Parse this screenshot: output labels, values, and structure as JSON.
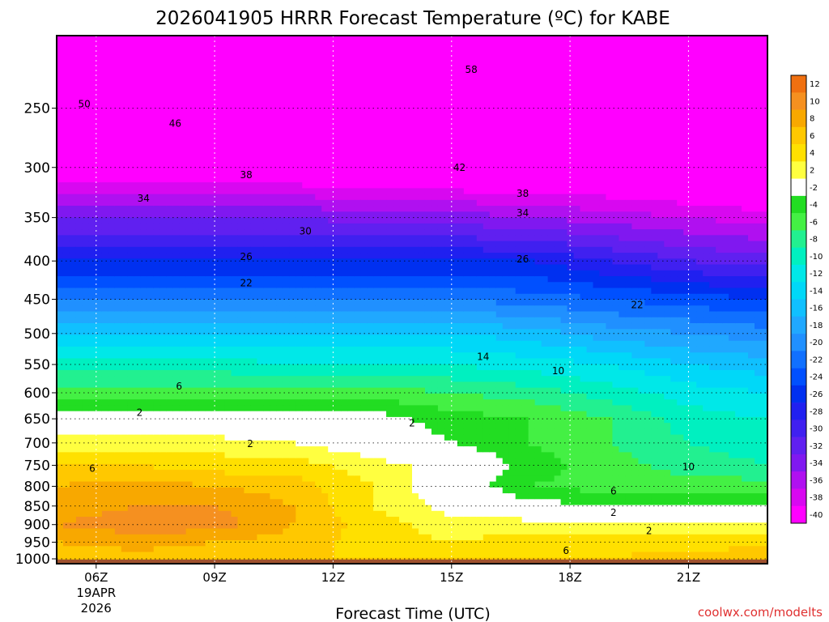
{
  "title": "2026041905 HRRR Forecast Temperature (ºC) for KABE",
  "xlabel": "Forecast Time (UTC)",
  "credit": "coolwx.com/modelts",
  "colors": {
    "ground": "#A0522D",
    "credit": "#e03030",
    "warm_line": "#000000",
    "freezing_line": "#e0207a",
    "cold_line": "#000000"
  },
  "chart_data": {
    "type": "heatmap",
    "title": "2026041905 HRRR Forecast Temperature (ºC) for KABE",
    "xlabel": "Forecast Time (UTC)",
    "ylabel": "",
    "y_scale": "log",
    "y_reversed": true,
    "x_ticks": [
      {
        "hour": 6,
        "label": "06Z",
        "date_line1": "19APR",
        "date_line2": "2026"
      },
      {
        "hour": 9,
        "label": "09Z"
      },
      {
        "hour": 12,
        "label": "12Z"
      },
      {
        "hour": 15,
        "label": "15Z"
      },
      {
        "hour": 18,
        "label": "18Z"
      },
      {
        "hour": 21,
        "label": "21Z"
      }
    ],
    "xlim": [
      5,
      23
    ],
    "ylim": [
      1015,
      200
    ],
    "y_ticks": [
      250,
      300,
      350,
      400,
      450,
      500,
      550,
      600,
      650,
      700,
      750,
      800,
      850,
      900,
      950,
      1000
    ],
    "colorbar": {
      "bins": [
        {
          "label": "12",
          "color": "#f07010"
        },
        {
          "label": "10",
          "color": "#f59020"
        },
        {
          "label": "8",
          "color": "#f8a800"
        },
        {
          "label": "6",
          "color": "#ffc800"
        },
        {
          "label": "4",
          "color": "#ffe000"
        },
        {
          "label": "2",
          "color": "#ffff40"
        },
        {
          "label": "-2",
          "color": "#ffffff"
        },
        {
          "label": "-4",
          "color": "#22dd22"
        },
        {
          "label": "-6",
          "color": "#44f044"
        },
        {
          "label": "-8",
          "color": "#22f090"
        },
        {
          "label": "-10",
          "color": "#00f0c0"
        },
        {
          "label": "-12",
          "color": "#00e8e8"
        },
        {
          "label": "-14",
          "color": "#00d8f8"
        },
        {
          "label": "-16",
          "color": "#10c0ff"
        },
        {
          "label": "-18",
          "color": "#20a8ff"
        },
        {
          "label": "-20",
          "color": "#2090ff"
        },
        {
          "label": "-22",
          "color": "#1070ff"
        },
        {
          "label": "-24",
          "color": "#0050ff"
        },
        {
          "label": "-26",
          "color": "#0030f0"
        },
        {
          "label": "-28",
          "color": "#2020f0"
        },
        {
          "label": "-30",
          "color": "#4020f0"
        },
        {
          "label": "-32",
          "color": "#6020f0"
        },
        {
          "label": "-34",
          "color": "#8018f0"
        },
        {
          "label": "-36",
          "color": "#b010f0"
        },
        {
          "label": "-38",
          "color": "#d808f0"
        },
        {
          "label": "-40",
          "color": "#ff00ff"
        }
      ]
    },
    "color_stops": [
      {
        "t": -40,
        "color": "#ff00ff"
      },
      {
        "t": -38,
        "color": "#d808f0"
      },
      {
        "t": -36,
        "color": "#b010f0"
      },
      {
        "t": -34,
        "color": "#8018f0"
      },
      {
        "t": -32,
        "color": "#6020f0"
      },
      {
        "t": -30,
        "color": "#4020f0"
      },
      {
        "t": -28,
        "color": "#2020f0"
      },
      {
        "t": -26,
        "color": "#0030f0"
      },
      {
        "t": -24,
        "color": "#0050ff"
      },
      {
        "t": -22,
        "color": "#1070ff"
      },
      {
        "t": -20,
        "color": "#2090ff"
      },
      {
        "t": -18,
        "color": "#20a8ff"
      },
      {
        "t": -16,
        "color": "#10c0ff"
      },
      {
        "t": -14,
        "color": "#00d8f8"
      },
      {
        "t": -12,
        "color": "#00e8e8"
      },
      {
        "t": -10,
        "color": "#00f0c0"
      },
      {
        "t": -8,
        "color": "#22f090"
      },
      {
        "t": -6,
        "color": "#44f044"
      },
      {
        "t": -4,
        "color": "#22dd22"
      },
      {
        "t": -2,
        "color": "#ffffff"
      },
      {
        "t": 2,
        "color": "#ffff40"
      },
      {
        "t": 4,
        "color": "#ffe000"
      },
      {
        "t": 6,
        "color": "#ffc800"
      },
      {
        "t": 8,
        "color": "#f8a800"
      },
      {
        "t": 10,
        "color": "#f59020"
      },
      {
        "t": 12,
        "color": "#f07010"
      }
    ],
    "temperature_grid": {
      "hours": [
        5,
        7,
        9,
        11,
        13,
        15,
        17,
        19,
        21,
        23
      ],
      "pressure": [
        200,
        250,
        300,
        350,
        400,
        450,
        500,
        550,
        600,
        650,
        700,
        750,
        800,
        850,
        900,
        950,
        1000
      ],
      "values": [
        [
          -58,
          -58,
          -58,
          -58,
          -58,
          -58,
          -58,
          -58,
          -57,
          -56
        ],
        [
          -50,
          -50,
          -50,
          -50,
          -50,
          -50,
          -50,
          -50,
          -49,
          -48
        ],
        [
          -40,
          -40,
          -40,
          -41,
          -41,
          -42,
          -42,
          -42,
          -43,
          -44
        ],
        [
          -32,
          -32,
          -32,
          -32,
          -33,
          -33,
          -34,
          -35,
          -36,
          -37
        ],
        [
          -26,
          -26,
          -26,
          -26,
          -26,
          -26,
          -26,
          -28,
          -30,
          -31
        ],
        [
          -20,
          -20,
          -20,
          -20,
          -20,
          -20,
          -21,
          -22,
          -23,
          -24
        ],
        [
          -14,
          -14,
          -14,
          -14,
          -14,
          -14,
          -15,
          -17,
          -18,
          -19
        ],
        [
          -9,
          -9,
          -9,
          -10,
          -10,
          -10,
          -11,
          -12,
          -14,
          -15
        ],
        [
          -5,
          -5,
          -5,
          -5,
          -5,
          -6,
          -7,
          -9,
          -11,
          -12
        ],
        [
          -1,
          -1,
          -1,
          -1,
          -1,
          -3,
          -4,
          -6,
          -9,
          -10
        ],
        [
          3,
          3,
          3,
          2,
          0,
          -2,
          -4,
          -6,
          -8,
          -9
        ],
        [
          6,
          6,
          5,
          5,
          3,
          1,
          -3,
          -5,
          -7,
          -8
        ],
        [
          8,
          9,
          8,
          7,
          4,
          0,
          -4,
          -5,
          -5,
          -5
        ],
        [
          9,
          10,
          10,
          8,
          4,
          1,
          -1,
          -2,
          -2,
          -2
        ],
        [
          10,
          11,
          11,
          8,
          5,
          3,
          3,
          3,
          3,
          3
        ],
        [
          8,
          9,
          8,
          7,
          5,
          4,
          5,
          5,
          5,
          5
        ],
        [
          6,
          7,
          6,
          6,
          6,
          6,
          6,
          6,
          7,
          8
        ]
      ]
    },
    "contour_labels": [
      {
        "text": "58",
        "hour": 15.5,
        "p": 222
      },
      {
        "text": "50",
        "hour": 5.7,
        "p": 247
      },
      {
        "text": "46",
        "hour": 8.0,
        "p": 262
      },
      {
        "text": "42",
        "hour": 15.2,
        "p": 300
      },
      {
        "text": "38",
        "hour": 9.8,
        "p": 307
      },
      {
        "text": "38",
        "hour": 16.8,
        "p": 325
      },
      {
        "text": "34",
        "hour": 7.2,
        "p": 330
      },
      {
        "text": "34",
        "hour": 16.8,
        "p": 345
      },
      {
        "text": "30",
        "hour": 11.3,
        "p": 365
      },
      {
        "text": "26",
        "hour": 9.8,
        "p": 395
      },
      {
        "text": "26",
        "hour": 16.8,
        "p": 398
      },
      {
        "text": "22",
        "hour": 9.8,
        "p": 428
      },
      {
        "text": "22",
        "hour": 19.7,
        "p": 458
      },
      {
        "text": "14",
        "hour": 15.8,
        "p": 537
      },
      {
        "text": "10",
        "hour": 17.7,
        "p": 561
      },
      {
        "text": "6",
        "hour": 8.1,
        "p": 588
      },
      {
        "text": "2",
        "hour": 7.1,
        "p": 638
      },
      {
        "text": "2",
        "hour": 14.0,
        "p": 659
      },
      {
        "text": "2",
        "hour": 9.9,
        "p": 702
      },
      {
        "text": "6",
        "hour": 5.9,
        "p": 757
      },
      {
        "text": "10",
        "hour": 21.0,
        "p": 754
      },
      {
        "text": "6",
        "hour": 19.1,
        "p": 812
      },
      {
        "text": "2",
        "hour": 19.1,
        "p": 868
      },
      {
        "text": "2",
        "hour": 20.0,
        "p": 918
      },
      {
        "text": "6",
        "hour": 17.9,
        "p": 975
      }
    ],
    "grid": "dotted"
  }
}
